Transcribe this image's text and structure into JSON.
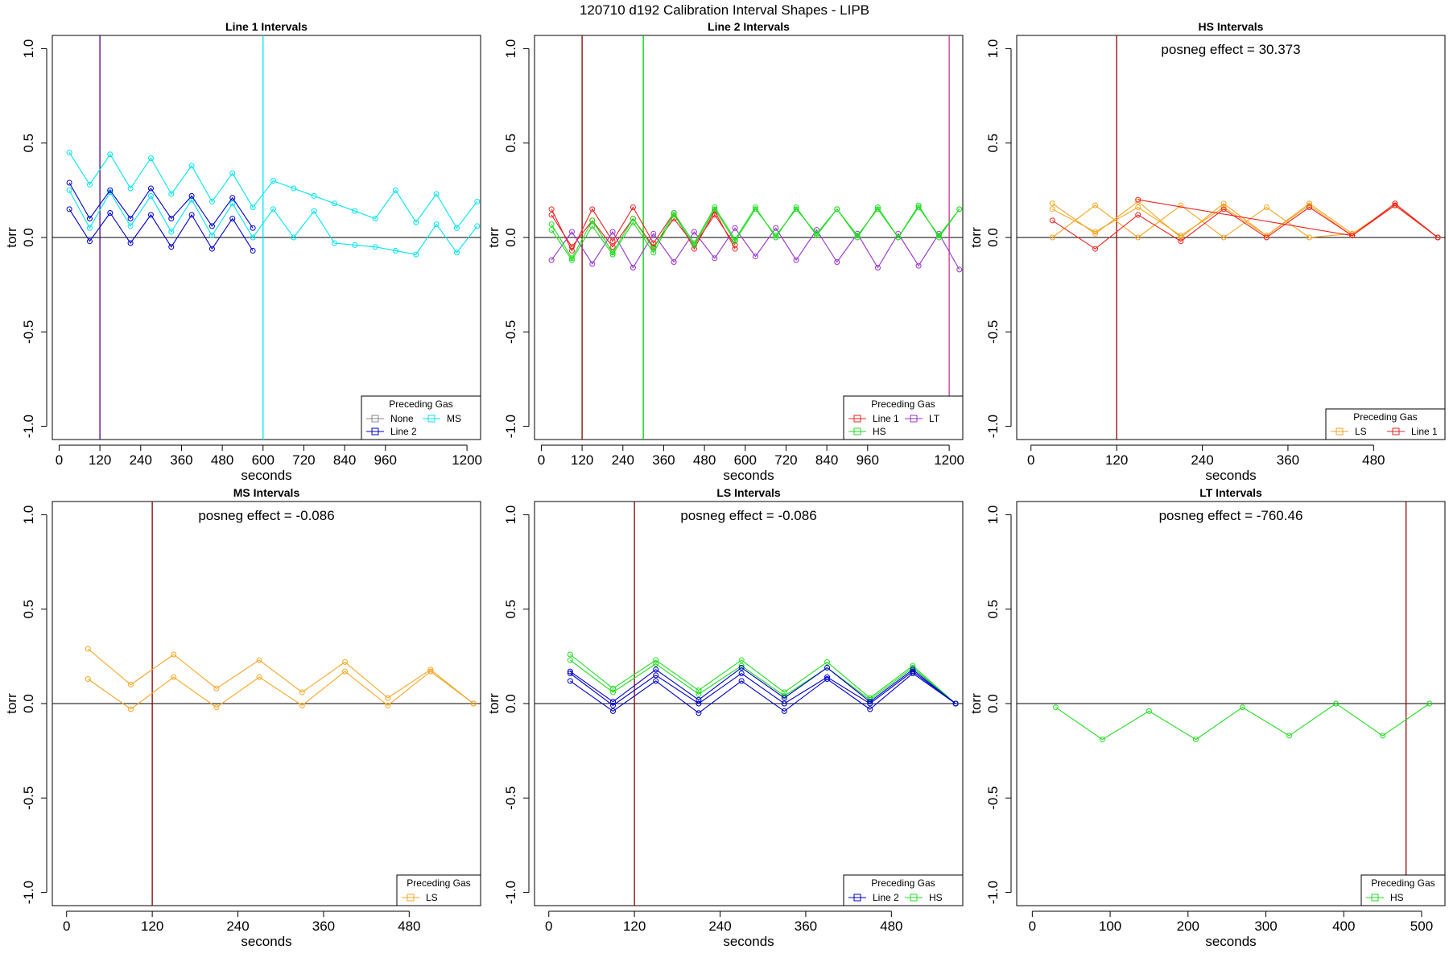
{
  "figure": {
    "title": "120710    d192    Calibration Interval Shapes - LIPB"
  },
  "chart_data": [
    {
      "type": "line",
      "title": "Line 1 Intervals",
      "xlabel": "seconds",
      "ylabel": "torr",
      "xlim": [
        -20,
        1240
      ],
      "ylim": [
        -1.07,
        1.07
      ],
      "xticks": [
        0,
        120,
        240,
        360,
        480,
        600,
        720,
        840,
        960,
        1200
      ],
      "yticks": [
        -1.0,
        -0.5,
        0.0,
        0.5,
        1.0
      ],
      "vlines": [
        {
          "x": 120,
          "color": "#4b0082"
        },
        {
          "x": 600,
          "color": "#00e5ee"
        }
      ],
      "annotation": "",
      "legend": {
        "title": "Preceding Gas",
        "position": "bottom-right",
        "columns": 2,
        "entries": [
          {
            "label": "None",
            "color": "#888888"
          },
          {
            "label": "MS",
            "color": "#00e5ee"
          },
          {
            "label": "Line 2",
            "color": "#0000cc"
          }
        ]
      },
      "series": [
        {
          "color": "#00e5ee",
          "x": [
            30,
            90,
            150,
            210,
            270,
            330,
            390,
            450,
            510,
            570,
            630,
            690,
            750,
            810,
            870,
            930,
            990,
            1050,
            1110,
            1170,
            1230
          ],
          "y": [
            0.45,
            0.28,
            0.44,
            0.26,
            0.42,
            0.23,
            0.38,
            0.19,
            0.34,
            0.16,
            0.3,
            0.26,
            0.22,
            0.18,
            0.14,
            0.1,
            0.25,
            0.08,
            0.23,
            0.05,
            0.19
          ]
        },
        {
          "color": "#00e5ee",
          "x": [
            30,
            90,
            150,
            210,
            270,
            330,
            390,
            450,
            510,
            570,
            630,
            690,
            750,
            810,
            870,
            930,
            990,
            1050,
            1110,
            1170,
            1230
          ],
          "y": [
            0.25,
            0.05,
            0.24,
            0.06,
            0.22,
            0.03,
            0.2,
            0.01,
            0.18,
            0.0,
            0.15,
            0.0,
            0.14,
            -0.03,
            -0.04,
            -0.05,
            -0.07,
            -0.09,
            0.07,
            -0.08,
            0.06
          ]
        },
        {
          "color": "#0000cc",
          "x": [
            30,
            90,
            150,
            210,
            270,
            330,
            390,
            450,
            510,
            570
          ],
          "y": [
            0.29,
            0.1,
            0.25,
            0.1,
            0.26,
            0.1,
            0.22,
            0.06,
            0.21,
            0.05
          ]
        },
        {
          "color": "#0000cc",
          "x": [
            30,
            90,
            150,
            210,
            270,
            330,
            390,
            450,
            510,
            570
          ],
          "y": [
            0.15,
            -0.02,
            0.13,
            -0.03,
            0.12,
            -0.05,
            0.12,
            -0.06,
            0.1,
            -0.07
          ]
        }
      ]
    },
    {
      "type": "line",
      "title": "Line 2 Intervals",
      "xlabel": "seconds",
      "ylabel": "torr",
      "xlim": [
        -20,
        1240
      ],
      "ylim": [
        -1.07,
        1.07
      ],
      "xticks": [
        0,
        120,
        240,
        360,
        480,
        600,
        720,
        840,
        960,
        1200
      ],
      "yticks": [
        -1.0,
        -0.5,
        0.0,
        0.5,
        1.0
      ],
      "vlines": [
        {
          "x": 120,
          "color": "#8b0000"
        },
        {
          "x": 300,
          "color": "#00cc00"
        },
        {
          "x": 1200,
          "color": "#cc3399"
        }
      ],
      "annotation": "",
      "legend": {
        "title": "Preceding Gas",
        "position": "bottom-right",
        "columns": 2,
        "entries": [
          {
            "label": "Line 1",
            "color": "#ee2222"
          },
          {
            "label": "LT",
            "color": "#9933cc"
          },
          {
            "label": "HS",
            "color": "#22dd22"
          }
        ]
      },
      "series": [
        {
          "color": "#ee2222",
          "x": [
            30,
            90,
            150,
            210,
            270,
            330,
            390,
            450,
            510,
            570
          ],
          "y": [
            0.15,
            -0.07,
            0.15,
            -0.02,
            0.16,
            -0.03,
            0.13,
            -0.06,
            0.14,
            -0.06
          ]
        },
        {
          "color": "#ee2222",
          "x": [
            30,
            90,
            150,
            210,
            270,
            330,
            390,
            450,
            510,
            570
          ],
          "y": [
            0.12,
            -0.05,
            0.09,
            -0.05,
            0.1,
            -0.05,
            0.1,
            -0.04,
            0.12,
            -0.04
          ]
        },
        {
          "color": "#9933cc",
          "x": [
            30,
            90,
            150,
            210,
            270,
            330,
            390,
            450,
            510,
            570,
            630,
            690,
            750,
            810,
            870,
            930,
            990,
            1050,
            1110,
            1170,
            1230
          ],
          "y": [
            -0.12,
            0.03,
            -0.14,
            0.03,
            -0.16,
            0.02,
            -0.13,
            0.03,
            -0.11,
            0.05,
            -0.1,
            0.05,
            -0.12,
            0.04,
            -0.13,
            0.02,
            -0.16,
            0.02,
            -0.15,
            0.02,
            -0.17
          ]
        },
        {
          "color": "#22dd22",
          "x": [
            30,
            90,
            150,
            210,
            270,
            330,
            390,
            450,
            510,
            570,
            630,
            690,
            750,
            810,
            870,
            930,
            990,
            1050,
            1110,
            1170,
            1230
          ],
          "y": [
            0.07,
            -0.11,
            0.09,
            -0.08,
            0.1,
            -0.06,
            0.13,
            -0.03,
            0.16,
            -0.01,
            0.16,
            0.0,
            0.16,
            0.01,
            0.15,
            0.0,
            0.16,
            0.0,
            0.17,
            0.0,
            0.15
          ]
        },
        {
          "color": "#22dd22",
          "x": [
            30,
            90,
            150,
            210,
            270,
            330,
            390,
            450,
            510,
            570,
            630,
            690,
            750,
            810,
            870,
            930,
            990,
            1050,
            1110,
            1170,
            1230
          ],
          "y": [
            0.04,
            -0.12,
            0.06,
            -0.09,
            0.08,
            -0.08,
            0.12,
            -0.04,
            0.15,
            -0.02,
            0.15,
            0.01,
            0.15,
            0.02,
            0.15,
            0.01,
            0.15,
            0.0,
            0.16,
            0.01,
            0.15
          ]
        }
      ]
    },
    {
      "type": "line",
      "title": "HS Intervals",
      "xlabel": "seconds",
      "ylabel": "torr",
      "xlim": [
        -20,
        580
      ],
      "ylim": [
        -1.07,
        1.07
      ],
      "xticks": [
        0,
        120,
        240,
        360,
        480
      ],
      "yticks": [
        -1.0,
        -0.5,
        0.0,
        0.5,
        1.0
      ],
      "vlines": [
        {
          "x": 120,
          "color": "#8b0000"
        }
      ],
      "annotation": "posneg effect = 30.373",
      "legend": {
        "title": "Preceding Gas",
        "position": "bottom-right",
        "columns": 2,
        "entries": [
          {
            "label": "LS",
            "color": "#f5a623"
          },
          {
            "label": "Line 1",
            "color": "#ee2222"
          }
        ]
      },
      "series": [
        {
          "color": "#f5a623",
          "x": [
            30,
            90,
            150,
            210,
            270,
            330,
            390,
            450,
            510,
            570
          ],
          "y": [
            0.0,
            0.17,
            0.0,
            0.17,
            0.0,
            0.16,
            0.0,
            0.02,
            0.17,
            0.0
          ]
        },
        {
          "color": "#f5a623",
          "x": [
            30,
            90,
            150,
            210,
            270,
            330,
            390,
            450,
            510,
            570
          ],
          "y": [
            0.18,
            0.02,
            0.19,
            0.0,
            0.18,
            0.01,
            0.18,
            0.02,
            0.17,
            0.0
          ]
        },
        {
          "color": "#f5a623",
          "x": [
            30,
            90,
            150,
            210,
            270,
            330,
            390,
            450,
            510,
            570
          ],
          "y": [
            0.15,
            0.03,
            0.16,
            0.01,
            0.16,
            0.01,
            0.17,
            0.01,
            0.17,
            0.0
          ]
        },
        {
          "color": "#ee2222",
          "x": [
            30,
            90,
            150,
            210,
            270,
            330,
            390,
            450,
            510,
            570
          ],
          "y": [
            0.09,
            -0.06,
            0.12,
            -0.02,
            0.15,
            0.0,
            0.16,
            0.01,
            0.18,
            0.0
          ]
        },
        {
          "color": "#ee2222",
          "x": [
            150,
            450,
            510,
            570
          ],
          "y": [
            0.2,
            0.01,
            0.17,
            0.0
          ]
        }
      ]
    },
    {
      "type": "line",
      "title": "MS Intervals",
      "xlabel": "seconds",
      "ylabel": "torr",
      "xlim": [
        -20,
        580
      ],
      "ylim": [
        -1.07,
        1.07
      ],
      "xticks": [
        0,
        120,
        240,
        360,
        480
      ],
      "yticks": [
        -1.0,
        -0.5,
        0.0,
        0.5,
        1.0
      ],
      "vlines": [
        {
          "x": 120,
          "color": "#8b0000"
        }
      ],
      "annotation": "posneg effect = -0.086",
      "legend": {
        "title": "Preceding Gas",
        "position": "bottom-right",
        "columns": 1,
        "entries": [
          {
            "label": "LS",
            "color": "#f5a623"
          }
        ]
      },
      "series": [
        {
          "color": "#f5a623",
          "x": [
            30,
            90,
            150,
            210,
            270,
            330,
            390,
            450,
            510,
            570
          ],
          "y": [
            0.29,
            0.1,
            0.26,
            0.08,
            0.23,
            0.06,
            0.22,
            0.03,
            0.18,
            0.0
          ]
        },
        {
          "color": "#f5a623",
          "x": [
            30,
            90,
            150,
            210,
            270,
            330,
            390,
            450,
            510,
            570
          ],
          "y": [
            0.13,
            -0.03,
            0.14,
            -0.02,
            0.14,
            -0.01,
            0.17,
            -0.01,
            0.17,
            0.0
          ]
        }
      ]
    },
    {
      "type": "line",
      "title": "LS Intervals",
      "xlabel": "seconds",
      "ylabel": "torr",
      "xlim": [
        -20,
        580
      ],
      "ylim": [
        -1.07,
        1.07
      ],
      "xticks": [
        0,
        120,
        240,
        360,
        480
      ],
      "yticks": [
        -1.0,
        -0.5,
        0.0,
        0.5,
        1.0
      ],
      "vlines": [
        {
          "x": 120,
          "color": "#8b0000"
        }
      ],
      "annotation": "posneg effect = -0.086",
      "legend": {
        "title": "Preceding Gas",
        "position": "bottom-right",
        "columns": 2,
        "entries": [
          {
            "label": "Line 2",
            "color": "#0000cc"
          },
          {
            "label": "HS",
            "color": "#22dd22"
          }
        ]
      },
      "series": [
        {
          "color": "#22dd22",
          "x": [
            30,
            90,
            150,
            210,
            270,
            330,
            390,
            450,
            510,
            570
          ],
          "y": [
            0.26,
            0.08,
            0.23,
            0.07,
            0.23,
            0.06,
            0.22,
            0.03,
            0.2,
            0.0
          ]
        },
        {
          "color": "#22dd22",
          "x": [
            30,
            90,
            150,
            210,
            270,
            330,
            390,
            450,
            510,
            570
          ],
          "y": [
            0.23,
            0.06,
            0.21,
            0.05,
            0.2,
            0.04,
            0.19,
            0.02,
            0.19,
            0.0
          ]
        },
        {
          "color": "#0000cc",
          "x": [
            30,
            90,
            150,
            210,
            270,
            330,
            390,
            450,
            510,
            570
          ],
          "y": [
            0.17,
            0.01,
            0.18,
            0.02,
            0.19,
            0.03,
            0.19,
            0.01,
            0.18,
            0.0
          ]
        },
        {
          "color": "#0000cc",
          "x": [
            30,
            90,
            150,
            210,
            270,
            330,
            390,
            450,
            510,
            570
          ],
          "y": [
            0.16,
            -0.01,
            0.15,
            0.0,
            0.16,
            0.0,
            0.14,
            0.0,
            0.17,
            0.0
          ]
        },
        {
          "color": "#0000cc",
          "x": [
            30,
            90,
            150,
            210,
            270,
            330,
            390,
            450,
            510,
            570
          ],
          "y": [
            0.12,
            -0.04,
            0.12,
            -0.05,
            0.12,
            -0.04,
            0.13,
            -0.03,
            0.16,
            0.0
          ]
        }
      ]
    },
    {
      "type": "line",
      "title": "LT Intervals",
      "xlabel": "seconds",
      "ylabel": "torr",
      "xlim": [
        -20,
        530
      ],
      "ylim": [
        -1.07,
        1.07
      ],
      "xticks": [
        0,
        100,
        200,
        300,
        400,
        500
      ],
      "yticks": [
        -1.0,
        -0.5,
        0.0,
        0.5,
        1.0
      ],
      "vlines": [
        {
          "x": 480,
          "color": "#8b0000"
        }
      ],
      "annotation": "posneg effect = -760.46",
      "legend": {
        "title": "Preceding Gas",
        "position": "bottom-right",
        "columns": 1,
        "entries": [
          {
            "label": "HS",
            "color": "#22dd22"
          }
        ]
      },
      "series": [
        {
          "color": "#22dd22",
          "x": [
            30,
            90,
            150,
            210,
            270,
            330,
            390,
            450,
            510
          ],
          "y": [
            -0.02,
            -0.19,
            -0.04,
            -0.19,
            -0.02,
            -0.17,
            0.0,
            -0.17,
            0.0
          ]
        }
      ]
    }
  ]
}
